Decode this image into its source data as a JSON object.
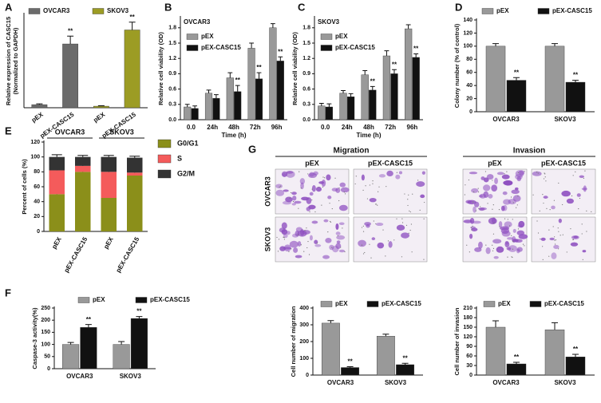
{
  "chart_data": [
    {
      "panel": "A",
      "type": "bar",
      "grouping": "overlay",
      "y_label": [
        "Relative expression of CASC15",
        "(Normalized to GAPDH)"
      ],
      "categories": [
        "pEX",
        "pEX-CASC15",
        "pEX",
        "pEX-CASC15"
      ],
      "ylim": [
        0,
        60
      ],
      "series": [
        {
          "name": "OVCAR3",
          "color": "#6b6b6b",
          "values": [
            2,
            41,
            null,
            null
          ],
          "errors": [
            0.5,
            5,
            null,
            null
          ],
          "labels": [
            null,
            "**",
            null,
            null
          ]
        },
        {
          "name": "SKOV3",
          "color": "#9c9c24",
          "values": [
            null,
            null,
            1,
            50
          ],
          "errors": [
            null,
            null,
            0.3,
            5
          ],
          "labels": [
            null,
            null,
            null,
            "**"
          ]
        }
      ]
    },
    {
      "panel": "B",
      "type": "bar",
      "grouping": "dodge",
      "title": "OVCAR3",
      "y_label": [
        "Relative cell viability (OD)"
      ],
      "x_label": "Time (h)",
      "categories": [
        "0.0",
        "24h",
        "48h",
        "72h",
        "96h"
      ],
      "ylim": [
        0,
        2.0
      ],
      "yticks": [
        {
          "value": 0,
          "label": "0.0"
        },
        0.3,
        0.6,
        0.9,
        1.2,
        1.5,
        1.8
      ],
      "series": [
        {
          "name": "pEX",
          "color": "#999999",
          "values": [
            0.25,
            0.52,
            0.82,
            1.4,
            1.8
          ],
          "errors": [
            0.05,
            0.06,
            0.1,
            0.1,
            0.08
          ],
          "labels": [
            null,
            null,
            null,
            null,
            null
          ]
        },
        {
          "name": "pEX-CASC15",
          "color": "#111111",
          "values": [
            0.22,
            0.42,
            0.55,
            0.8,
            1.15
          ],
          "errors": [
            0.05,
            0.07,
            0.12,
            0.12,
            0.08
          ],
          "labels": [
            null,
            null,
            "**",
            "**",
            "**"
          ]
        }
      ]
    },
    {
      "panel": "C",
      "type": "bar",
      "grouping": "dodge",
      "title": "SKOV3",
      "y_label": [
        "Relative cell viability (OD)"
      ],
      "x_label": "Time (h)",
      "categories": [
        "0.0",
        "24h",
        "48h",
        "72h",
        "96h"
      ],
      "ylim": [
        0,
        2.0
      ],
      "yticks": [
        {
          "value": 0,
          "label": "0.0"
        },
        0.3,
        0.6,
        0.9,
        1.2,
        1.5,
        1.8
      ],
      "series": [
        {
          "name": "pEX",
          "color": "#999999",
          "values": [
            0.27,
            0.52,
            0.88,
            1.25,
            1.78
          ],
          "errors": [
            0.05,
            0.05,
            0.08,
            0.1,
            0.08
          ],
          "labels": [
            null,
            null,
            null,
            null,
            null
          ]
        },
        {
          "name": "pEX-CASC15",
          "color": "#111111",
          "values": [
            0.25,
            0.45,
            0.58,
            0.9,
            1.22
          ],
          "errors": [
            0.06,
            0.06,
            0.07,
            0.08,
            0.07
          ],
          "labels": [
            null,
            null,
            "**",
            "**",
            "**"
          ]
        }
      ]
    },
    {
      "panel": "D",
      "type": "bar",
      "grouping": "dodge",
      "y_label": [
        "Colony number (% of control)"
      ],
      "categories": [
        "OVCAR3",
        "SKOV3"
      ],
      "ylim": [
        0,
        140
      ],
      "yticks": [
        0,
        20,
        40,
        60,
        80,
        100,
        120,
        140
      ],
      "series": [
        {
          "name": "pEX",
          "color": "#999999",
          "values": [
            100,
            100
          ],
          "errors": [
            4,
            4
          ],
          "labels": [
            null,
            null
          ]
        },
        {
          "name": "pEX-CASC15",
          "color": "#111111",
          "values": [
            48,
            45
          ],
          "errors": [
            4,
            3
          ],
          "labels": [
            "**",
            "**"
          ]
        }
      ]
    },
    {
      "panel": "E",
      "type": "stacked_bar",
      "y_label": [
        "Percent of cells (%)"
      ],
      "categories": [
        "pEX",
        "pEX-CASC15",
        "pEX",
        "pEX-CASC15"
      ],
      "group_labels": [
        "OVCAR3",
        "SKOV3"
      ],
      "ylim": [
        0,
        120
      ],
      "yticks": [
        0,
        20,
        40,
        60,
        80,
        100,
        120
      ],
      "series": [
        {
          "name": "G0/G1",
          "color": "#8b8f1a",
          "values": [
            50,
            80,
            45,
            75
          ],
          "errors": [
            2,
            2,
            2,
            2
          ]
        },
        {
          "name": "S",
          "color": "#f45b5b",
          "values": [
            32,
            8,
            35,
            4
          ],
          "errors": [
            2,
            2,
            2,
            2
          ]
        },
        {
          "name": "G2/M",
          "color": "#333333",
          "values": [
            18,
            12,
            20,
            20
          ],
          "errors": [
            3,
            2,
            2,
            2
          ]
        }
      ]
    },
    {
      "panel": "F",
      "type": "bar",
      "grouping": "dodge",
      "y_label": [
        "Caspase-3 activity(%)"
      ],
      "categories": [
        "OVCAR3",
        "SKOV3"
      ],
      "ylim": [
        0,
        250
      ],
      "yticks": [
        0,
        50,
        100,
        150,
        200,
        250
      ],
      "series": [
        {
          "name": "pEX",
          "color": "#999999",
          "values": [
            100,
            100
          ],
          "errors": [
            8,
            12
          ],
          "labels": [
            null,
            null
          ]
        },
        {
          "name": "pEX-CASC15",
          "color": "#111111",
          "values": [
            170,
            207
          ],
          "errors": [
            12,
            8
          ],
          "labels": [
            "**",
            "**"
          ]
        }
      ]
    },
    {
      "type": "bar",
      "grouping": "dodge",
      "y_label": [
        "Cell number of migration"
      ],
      "categories": [
        "OVCAR3",
        "SKOV3"
      ],
      "ylim": [
        0,
        400
      ],
      "yticks": [
        0,
        100,
        200,
        300,
        400
      ],
      "series": [
        {
          "name": "pEX",
          "color": "#999999",
          "values": [
            310,
            232
          ],
          "errors": [
            15,
            12
          ],
          "labels": [
            null,
            null
          ]
        },
        {
          "name": "pEX-CASC15",
          "color": "#111111",
          "values": [
            45,
            62
          ],
          "errors": [
            5,
            8
          ],
          "labels": [
            "**",
            "**"
          ]
        }
      ]
    },
    {
      "type": "bar",
      "grouping": "dodge",
      "y_label": [
        "Cell number of invasion"
      ],
      "categories": [
        "OVCAR3",
        "SKOV3"
      ],
      "ylim": [
        0,
        210
      ],
      "yticks": [
        0,
        30,
        60,
        90,
        120,
        150,
        180,
        210
      ],
      "series": [
        {
          "name": "pEX",
          "color": "#999999",
          "values": [
            150,
            142
          ],
          "errors": [
            20,
            22
          ],
          "labels": [
            null,
            null
          ]
        },
        {
          "name": "pEX-CASC15",
          "color": "#111111",
          "values": [
            35,
            57
          ],
          "errors": [
            5,
            8
          ],
          "labels": [
            "**",
            "**"
          ]
        }
      ]
    }
  ],
  "images": {
    "panel": "G",
    "columns": [
      "Migration",
      "Invasion"
    ],
    "conditions": [
      "pEX",
      "pEX-CASC15"
    ],
    "rows": [
      "OVCAR3",
      "SKOV3"
    ]
  }
}
